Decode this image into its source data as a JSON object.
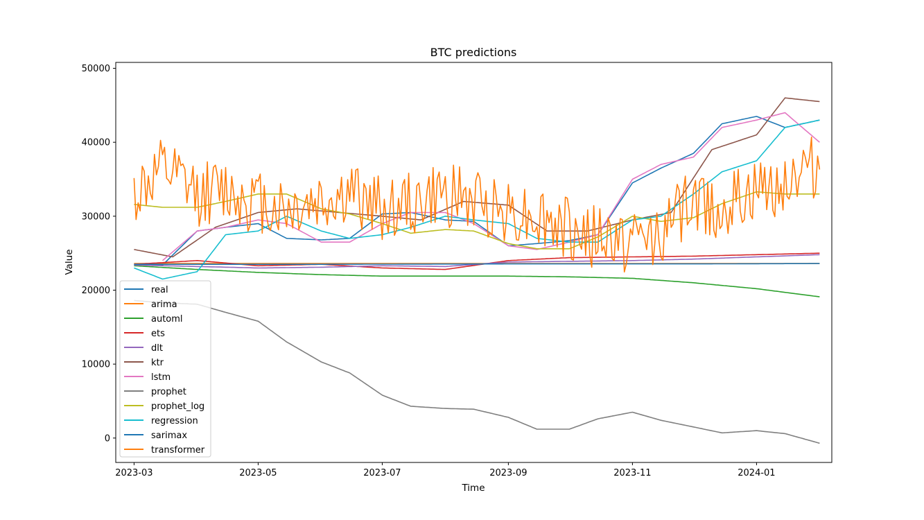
{
  "chart_data": {
    "type": "line",
    "title": "BTC predictions",
    "xlabel": "Time",
    "ylabel": "Value",
    "xlim": [
      "2023-02-20",
      "2024-02-07"
    ],
    "ylim": [
      -3300,
      50800
    ],
    "x_ticks": [
      {
        "date": "2023-03-01",
        "label": "2023-03"
      },
      {
        "date": "2023-05-01",
        "label": "2023-05"
      },
      {
        "date": "2023-07-01",
        "label": "2023-07"
      },
      {
        "date": "2023-09-01",
        "label": "2023-09"
      },
      {
        "date": "2023-11-01",
        "label": "2023-11"
      },
      {
        "date": "2024-01-01",
        "label": "2024-01"
      }
    ],
    "y_ticks": [
      {
        "value": 0,
        "label": "0"
      },
      {
        "value": 10000,
        "label": "10000"
      },
      {
        "value": 20000,
        "label": "20000"
      },
      {
        "value": 30000,
        "label": "30000"
      },
      {
        "value": 40000,
        "label": "40000"
      },
      {
        "value": 50000,
        "label": "50000"
      }
    ],
    "grid": false,
    "legend_position": "lower-left",
    "series": [
      {
        "name": "real",
        "color": "#1f77b4",
        "x": [
          "2023-03-01",
          "2023-03-15",
          "2023-04-01",
          "2023-04-15",
          "2023-05-01",
          "2023-05-15",
          "2023-06-01",
          "2023-06-15",
          "2023-07-01",
          "2023-07-15",
          "2023-08-01",
          "2023-08-15",
          "2023-09-01",
          "2023-09-15",
          "2023-10-01",
          "2023-10-15",
          "2023-11-01",
          "2023-11-15",
          "2023-12-01",
          "2023-12-15",
          "2024-01-01",
          "2024-01-15",
          "2024-02-01"
        ],
        "y": [
          23500,
          23400,
          28000,
          28500,
          29000,
          27000,
          26800,
          27000,
          30300,
          30500,
          29500,
          29300,
          26000,
          26300,
          26700,
          27500,
          34500,
          36500,
          38500,
          42500,
          43500,
          42000,
          43000
        ]
      },
      {
        "name": "arima",
        "color": "#ff7f0e",
        "x": [
          "2023-03-01",
          "2023-06-01",
          "2023-09-01",
          "2023-12-01",
          "2024-02-01"
        ],
        "y": [
          23600,
          23600,
          23600,
          23600,
          23600
        ]
      },
      {
        "name": "automl",
        "color": "#2ca02c",
        "x": [
          "2023-03-01",
          "2023-04-01",
          "2023-05-01",
          "2023-06-01",
          "2023-07-01",
          "2023-08-01",
          "2023-09-01",
          "2023-10-01",
          "2023-11-01",
          "2023-12-01",
          "2024-01-01",
          "2024-02-01"
        ],
        "y": [
          23300,
          22800,
          22400,
          22100,
          21900,
          21900,
          21900,
          21800,
          21600,
          21000,
          20200,
          19100
        ]
      },
      {
        "name": "ets",
        "color": "#d62728",
        "x": [
          "2023-03-01",
          "2023-04-01",
          "2023-05-01",
          "2023-06-01",
          "2023-07-01",
          "2023-08-01",
          "2023-09-01",
          "2023-10-01",
          "2023-11-01",
          "2023-12-01",
          "2024-01-01",
          "2024-02-01"
        ],
        "y": [
          23500,
          24000,
          23300,
          23500,
          23000,
          22800,
          24000,
          24400,
          24500,
          24600,
          24800,
          25000
        ]
      },
      {
        "name": "dlt",
        "color": "#9467bd",
        "x": [
          "2023-03-01",
          "2023-04-01",
          "2023-05-01",
          "2023-06-01",
          "2023-07-01",
          "2023-08-01",
          "2023-09-01",
          "2023-10-01",
          "2023-11-01",
          "2023-12-01",
          "2024-01-01",
          "2024-02-01"
        ],
        "y": [
          23400,
          23200,
          23000,
          23100,
          23300,
          23200,
          23800,
          23900,
          24000,
          24200,
          24500,
          24800
        ]
      },
      {
        "name": "ktr",
        "color": "#8c564b",
        "x": [
          "2023-03-01",
          "2023-03-20",
          "2023-04-10",
          "2023-05-01",
          "2023-05-20",
          "2023-06-10",
          "2023-07-01",
          "2023-07-20",
          "2023-08-10",
          "2023-09-01",
          "2023-09-20",
          "2023-10-10",
          "2023-11-01",
          "2023-11-20",
          "2023-12-10",
          "2024-01-01",
          "2024-01-15",
          "2024-02-01"
        ],
        "y": [
          25500,
          24500,
          28500,
          30500,
          31000,
          30500,
          30000,
          29500,
          32000,
          31500,
          28000,
          28000,
          29500,
          30500,
          39000,
          41000,
          46000,
          45500
        ]
      },
      {
        "name": "lstm",
        "color": "#e377c2",
        "x": [
          "2023-03-15",
          "2023-04-01",
          "2023-04-15",
          "2023-05-01",
          "2023-05-15",
          "2023-06-01",
          "2023-06-15",
          "2023-07-01",
          "2023-07-15",
          "2023-08-01",
          "2023-08-15",
          "2023-09-01",
          "2023-09-15",
          "2023-10-01",
          "2023-10-15",
          "2023-11-01",
          "2023-11-15",
          "2023-12-01",
          "2023-12-15",
          "2024-01-01",
          "2024-01-15",
          "2024-02-01"
        ],
        "y": [
          24000,
          28000,
          28500,
          29500,
          29000,
          26500,
          26500,
          29000,
          30500,
          30500,
          29000,
          26000,
          25500,
          26500,
          27500,
          35000,
          37000,
          38000,
          42000,
          43000,
          44000,
          40000
        ]
      },
      {
        "name": "prophet",
        "color": "#7f7f7f",
        "x": [
          "2023-03-01",
          "2023-03-15",
          "2023-04-01",
          "2023-04-15",
          "2023-05-01",
          "2023-05-15",
          "2023-06-01",
          "2023-06-15",
          "2023-07-01",
          "2023-07-15",
          "2023-08-01",
          "2023-08-15",
          "2023-09-01",
          "2023-09-15",
          "2023-10-01",
          "2023-10-15",
          "2023-11-01",
          "2023-11-15",
          "2023-12-01",
          "2023-12-15",
          "2024-01-01",
          "2024-01-15",
          "2024-02-01"
        ],
        "y": [
          18600,
          18300,
          18100,
          17000,
          15800,
          13000,
          10300,
          8800,
          5800,
          4300,
          4000,
          3900,
          2800,
          1200,
          1200,
          2600,
          3500,
          2400,
          1500,
          700,
          1000,
          600,
          -700
        ]
      },
      {
        "name": "prophet_log",
        "color": "#bcbd22",
        "x": [
          "2023-03-01",
          "2023-03-15",
          "2023-04-01",
          "2023-04-15",
          "2023-05-01",
          "2023-05-15",
          "2023-06-01",
          "2023-06-15",
          "2023-07-01",
          "2023-07-15",
          "2023-08-01",
          "2023-08-15",
          "2023-09-01",
          "2023-09-15",
          "2023-10-01",
          "2023-10-15",
          "2023-11-01",
          "2023-11-15",
          "2023-12-01",
          "2023-12-15",
          "2024-01-01",
          "2024-01-15",
          "2024-02-01"
        ],
        "y": [
          31600,
          31200,
          31200,
          32000,
          33000,
          33000,
          31000,
          30300,
          29000,
          27700,
          28200,
          28000,
          26300,
          25600,
          25600,
          27200,
          30000,
          29300,
          29800,
          31700,
          33300,
          33000,
          33000
        ]
      },
      {
        "name": "regression",
        "color": "#17becf",
        "x": [
          "2023-03-01",
          "2023-03-15",
          "2023-04-01",
          "2023-04-15",
          "2023-05-01",
          "2023-05-15",
          "2023-06-01",
          "2023-06-15",
          "2023-07-01",
          "2023-07-15",
          "2023-08-01",
          "2023-08-15",
          "2023-09-01",
          "2023-09-15",
          "2023-10-01",
          "2023-10-15",
          "2023-11-01",
          "2023-11-15",
          "2023-12-01",
          "2023-12-15",
          "2024-01-01",
          "2024-01-15",
          "2024-02-01"
        ],
        "y": [
          23000,
          21500,
          22500,
          27500,
          28000,
          30000,
          28000,
          27000,
          27500,
          28500,
          30000,
          29500,
          29000,
          27000,
          26500,
          26500,
          29500,
          30000,
          33000,
          36000,
          37500,
          42000,
          43000
        ]
      },
      {
        "name": "sarimax",
        "color": "#1f77b4",
        "x": [
          "2023-03-01",
          "2023-06-01",
          "2023-09-01",
          "2023-12-01",
          "2024-02-01"
        ],
        "y": [
          23500,
          23500,
          23550,
          23550,
          23600
        ]
      },
      {
        "name": "transformer",
        "color": "#ff7f0e",
        "x": [
          "2023-03-01",
          "2023-03-15",
          "2023-04-01",
          "2023-04-15",
          "2023-05-01",
          "2023-05-15",
          "2023-06-01",
          "2023-06-15",
          "2023-07-01",
          "2023-07-15",
          "2023-08-01",
          "2023-08-15",
          "2023-09-01",
          "2023-09-15",
          "2023-10-01",
          "2023-10-15",
          "2023-11-01",
          "2023-11-15",
          "2023-12-01",
          "2023-12-15",
          "2024-01-01",
          "2024-01-15",
          "2024-02-01"
        ],
        "y": [
          33000,
          36000,
          33000,
          33500,
          32000,
          31000,
          32000,
          33000,
          31000,
          31500,
          33000,
          32000,
          31000,
          30000,
          28000,
          27000,
          26500,
          28000,
          32000,
          31000,
          33000,
          35000,
          37000
        ],
        "noise": 4500
      }
    ]
  }
}
